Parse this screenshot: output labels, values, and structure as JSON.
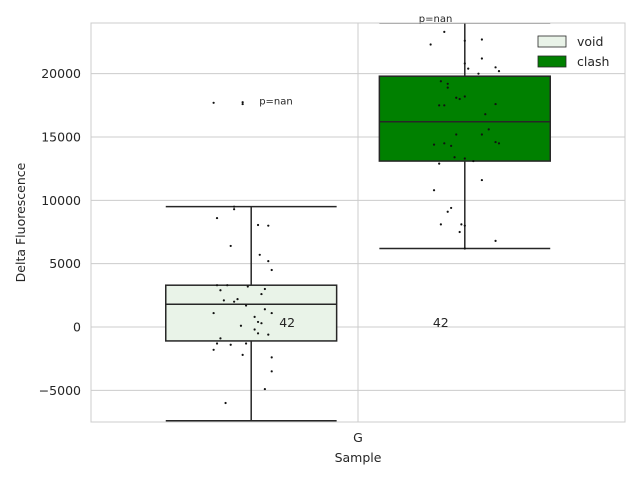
{
  "chart_data": {
    "type": "box",
    "xlabel": "Sample",
    "ylabel": "Delta Fluorescence",
    "categories": [
      "G"
    ],
    "ylim": [
      -7500,
      24000
    ],
    "yticks": [
      -5000,
      0,
      5000,
      10000,
      15000,
      20000
    ],
    "ytick_labels": [
      "−5000",
      "0",
      "5000",
      "10000",
      "15000",
      "20000"
    ],
    "grid": true,
    "legend_position": "top-right",
    "series": [
      {
        "name": "void",
        "color": "#e9f3e8",
        "box": {
          "whisker_low": -7400,
          "q1": -1100,
          "median": 1800,
          "q3": 3300,
          "whisker_high": 9500
        },
        "count_label": "42",
        "pvalue_label": "p=nan",
        "points": [
          [
            -0.22,
            17700
          ],
          [
            -0.05,
            17600
          ],
          [
            -0.05,
            17750
          ],
          [
            -0.1,
            9300
          ],
          [
            -0.1,
            9500
          ],
          [
            -0.2,
            8600
          ],
          [
            0.04,
            8050
          ],
          [
            -0.12,
            6400
          ],
          [
            0.1,
            8000
          ],
          [
            0.05,
            5700
          ],
          [
            0.1,
            5200
          ],
          [
            0.12,
            4500
          ],
          [
            -0.2,
            3300
          ],
          [
            -0.14,
            3300
          ],
          [
            -0.02,
            3200
          ],
          [
            0.08,
            3000
          ],
          [
            -0.18,
            2900
          ],
          [
            0.06,
            2600
          ],
          [
            -0.08,
            2200
          ],
          [
            -0.16,
            2100
          ],
          [
            -0.1,
            2000
          ],
          [
            -0.03,
            1700
          ],
          [
            0.08,
            1400
          ],
          [
            0.12,
            1100
          ],
          [
            -0.22,
            1100
          ],
          [
            0.02,
            800
          ],
          [
            0.04,
            400
          ],
          [
            0.06,
            300
          ],
          [
            -0.06,
            100
          ],
          [
            0.02,
            -200
          ],
          [
            0.04,
            -500
          ],
          [
            0.1,
            -600
          ],
          [
            -0.18,
            -900
          ],
          [
            -0.03,
            -1300
          ],
          [
            -0.2,
            -1300
          ],
          [
            -0.12,
            -1400
          ],
          [
            -0.22,
            -1800
          ],
          [
            -0.05,
            -2200
          ],
          [
            0.12,
            -2400
          ],
          [
            0.12,
            -3500
          ],
          [
            0.08,
            -4900
          ],
          [
            -0.15,
            -6000
          ]
        ]
      },
      {
        "name": "clash",
        "color": "#008000",
        "box": {
          "whisker_low": 6200,
          "q1": 13100,
          "median": 16200,
          "q3": 19800,
          "whisker_high": 24000
        },
        "count_label": "42",
        "pvalue_label": "p=nan",
        "points": [
          [
            -0.12,
            23300
          ],
          [
            -0.2,
            22300
          ],
          [
            0.1,
            22700
          ],
          [
            0.0,
            22600
          ],
          [
            0.1,
            21200
          ],
          [
            0.0,
            20800
          ],
          [
            0.02,
            20400
          ],
          [
            0.18,
            20500
          ],
          [
            0.2,
            20200
          ],
          [
            0.08,
            20000
          ],
          [
            -0.1,
            19200
          ],
          [
            -0.14,
            19400
          ],
          [
            -0.1,
            18900
          ],
          [
            -0.03,
            18000
          ],
          [
            0.0,
            18200
          ],
          [
            0.18,
            17600
          ],
          [
            -0.15,
            17500
          ],
          [
            -0.12,
            17500
          ],
          [
            -0.05,
            18100
          ],
          [
            0.12,
            16800
          ],
          [
            0.14,
            15600
          ],
          [
            0.1,
            15200
          ],
          [
            -0.05,
            15200
          ],
          [
            -0.18,
            14400
          ],
          [
            -0.12,
            14500
          ],
          [
            -0.08,
            14300
          ],
          [
            0.2,
            14500
          ],
          [
            0.18,
            14600
          ],
          [
            -0.06,
            13400
          ],
          [
            0.0,
            13300
          ],
          [
            0.05,
            13100
          ],
          [
            -0.15,
            12900
          ],
          [
            0.1,
            11600
          ],
          [
            -0.18,
            10800
          ],
          [
            -0.08,
            9400
          ],
          [
            -0.1,
            9100
          ],
          [
            -0.02,
            8100
          ],
          [
            -0.14,
            8100
          ],
          [
            0.0,
            8000
          ],
          [
            -0.03,
            7500
          ],
          [
            0.18,
            6800
          ],
          [
            0.0,
            6200
          ]
        ]
      }
    ]
  }
}
